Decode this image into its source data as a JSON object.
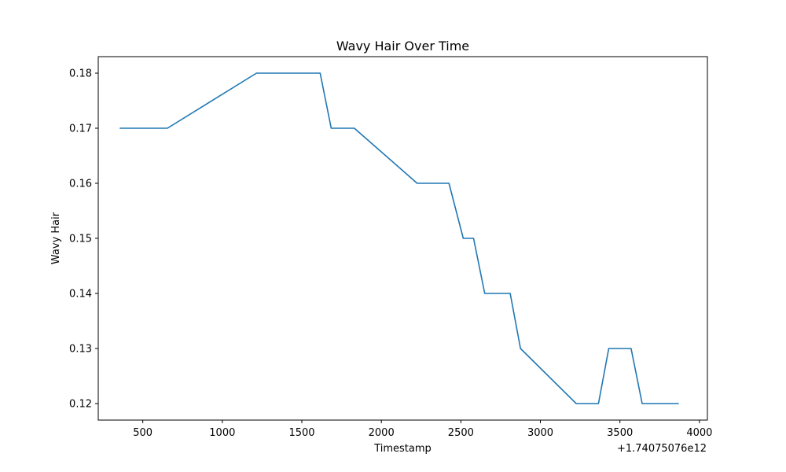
{
  "chart_data": {
    "type": "line",
    "title": "Wavy Hair Over Time",
    "xlabel": "Timestamp",
    "ylabel": "Wavy Hair",
    "x_offset_label": "+1.74075076e12",
    "xlim": [
      220,
      4050
    ],
    "ylim": [
      0.117,
      0.183
    ],
    "x_ticks": [
      500,
      1000,
      1500,
      2000,
      2500,
      3000,
      3500,
      4000
    ],
    "x_tick_labels": [
      "500",
      "1000",
      "1500",
      "2000",
      "2500",
      "3000",
      "3500",
      "4000"
    ],
    "y_ticks": [
      0.12,
      0.13,
      0.14,
      0.15,
      0.16,
      0.17,
      0.18
    ],
    "y_tick_labels": [
      "0.12",
      "0.13",
      "0.14",
      "0.15",
      "0.16",
      "0.17",
      "0.18"
    ],
    "grid": false,
    "series": [
      {
        "color": "#1f77b4",
        "x": [
          355,
          655,
          1215,
          1615,
          1685,
          1830,
          2225,
          2425,
          2515,
          2580,
          2650,
          2810,
          2875,
          3225,
          3365,
          3430,
          3570,
          3640,
          3870
        ],
        "y": [
          0.17,
          0.17,
          0.18,
          0.18,
          0.17,
          0.17,
          0.16,
          0.16,
          0.15,
          0.15,
          0.14,
          0.14,
          0.13,
          0.12,
          0.12,
          0.13,
          0.13,
          0.12,
          0.12
        ]
      }
    ]
  }
}
